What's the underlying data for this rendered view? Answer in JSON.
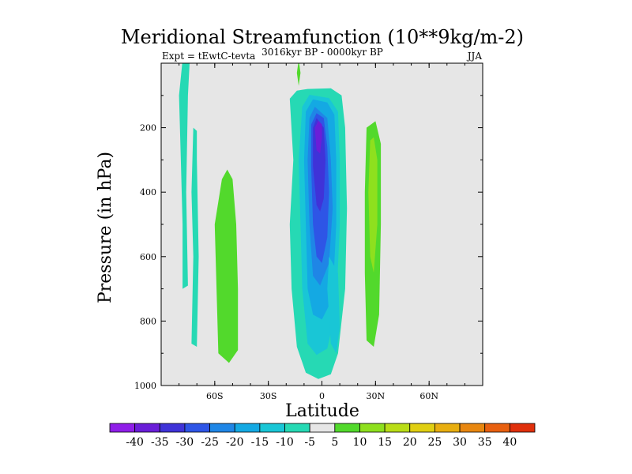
{
  "chart_data": {
    "type": "heatmap",
    "title": "Meridional Streamfunction (10**9kg/m-2)",
    "subtitle": "3016kyr BP - 0000kyr BP",
    "left_label": "Expt = tEwtC-tevta",
    "right_label": "JJA",
    "xlabel": "Latitude",
    "ylabel": "Pressure (in hPa)",
    "xlim": [
      -90,
      90
    ],
    "ylim": [
      1000,
      0
    ],
    "x_ticks": [
      {
        "value": -60,
        "label": "60S"
      },
      {
        "value": -30,
        "label": "30S"
      },
      {
        "value": 0,
        "label": "0"
      },
      {
        "value": 30,
        "label": "30N"
      },
      {
        "value": 60,
        "label": "60N"
      }
    ],
    "y_ticks": [
      {
        "value": 200,
        "label": "200"
      },
      {
        "value": 400,
        "label": "400"
      },
      {
        "value": 600,
        "label": "600"
      },
      {
        "value": 800,
        "label": "800"
      },
      {
        "value": 1000,
        "label": "1000"
      }
    ],
    "colorbar": {
      "levels": [
        -40,
        -35,
        -30,
        -25,
        -20,
        -15,
        -10,
        -5,
        5,
        10,
        15,
        20,
        25,
        30,
        35,
        40
      ],
      "labels": [
        "-40",
        "-35",
        "-30",
        "-25",
        "-20",
        "-15",
        "-10",
        "-5",
        "5",
        "10",
        "15",
        "20",
        "25",
        "30",
        "35",
        "40"
      ],
      "colors": [
        "#8f1ee8",
        "#6a1ed8",
        "#3f33d8",
        "#2e55e6",
        "#1f86e6",
        "#14a9e3",
        "#19c6d6",
        "#26d9b4",
        "#e6e6e6",
        "#52d92c",
        "#8ee01e",
        "#b9dd17",
        "#e0cf12",
        "#e8ae10",
        "#e88710",
        "#e86010",
        "#e0300c"
      ]
    },
    "background_color": "#e6e6e6",
    "regions": [
      {
        "name": "tropical-outer",
        "value": -10,
        "polygon": [
          [
            -8,
            80
          ],
          [
            -14,
            85
          ],
          [
            -18,
            110
          ],
          [
            -16,
            300
          ],
          [
            -18,
            500
          ],
          [
            -17,
            700
          ],
          [
            -14,
            880
          ],
          [
            -9,
            960
          ],
          [
            -2,
            980
          ],
          [
            5,
            965
          ],
          [
            9,
            900
          ],
          [
            13,
            700
          ],
          [
            14,
            450
          ],
          [
            13,
            200
          ],
          [
            11,
            100
          ],
          [
            5,
            78
          ]
        ]
      },
      {
        "name": "tropical-minus15",
        "value": -15,
        "polygon": [
          [
            -7,
            98
          ],
          [
            -11,
            135
          ],
          [
            -13,
            300
          ],
          [
            -12,
            500
          ],
          [
            -11,
            700
          ],
          [
            -8,
            870
          ],
          [
            -3,
            905
          ],
          [
            3,
            885
          ],
          [
            8,
            760
          ],
          [
            10,
            500
          ],
          [
            10,
            300
          ],
          [
            9,
            150
          ],
          [
            4,
            108
          ]
        ]
      },
      {
        "name": "tropical-minus20",
        "value": -20,
        "polygon": [
          [
            -5,
            112
          ],
          [
            -9,
            150
          ],
          [
            -10,
            300
          ],
          [
            -9,
            500
          ],
          [
            -8,
            700
          ],
          [
            -5,
            780
          ],
          [
            0,
            795
          ],
          [
            6,
            730
          ],
          [
            8,
            500
          ],
          [
            8,
            300
          ],
          [
            7,
            160
          ],
          [
            3,
            122
          ]
        ]
      },
      {
        "name": "tropical-minus25",
        "value": -25,
        "polygon": [
          [
            -4,
            135
          ],
          [
            -7,
            170
          ],
          [
            -8,
            300
          ],
          [
            -7,
            500
          ],
          [
            -5,
            660
          ],
          [
            -1,
            690
          ],
          [
            4,
            620
          ],
          [
            6,
            450
          ],
          [
            5,
            300
          ],
          [
            3,
            170
          ]
        ]
      },
      {
        "name": "tropical-minus30",
        "value": -30,
        "polygon": [
          [
            -3,
            155
          ],
          [
            -6,
            190
          ],
          [
            -6,
            320
          ],
          [
            -5,
            500
          ],
          [
            -3,
            600
          ],
          [
            0,
            620
          ],
          [
            3,
            540
          ],
          [
            4,
            400
          ],
          [
            3,
            260
          ],
          [
            1,
            170
          ]
        ]
      },
      {
        "name": "tropical-minus35",
        "value": -35,
        "polygon": [
          [
            -3,
            170
          ],
          [
            -5,
            200
          ],
          [
            -5,
            320
          ],
          [
            -3,
            440
          ],
          [
            -1,
            460
          ],
          [
            1,
            420
          ],
          [
            2,
            300
          ],
          [
            1,
            200
          ]
        ]
      },
      {
        "name": "tropical-minus40",
        "value": -40,
        "polygon": [
          [
            -2,
            178
          ],
          [
            -4,
            200
          ],
          [
            -3,
            270
          ],
          [
            -1,
            280
          ],
          [
            0,
            230
          ],
          [
            0,
            190
          ]
        ]
      },
      {
        "name": "nh-minus15-lobe",
        "value": -15,
        "polygon": [
          [
            4,
            600
          ],
          [
            3,
            700
          ],
          [
            5,
            870
          ],
          [
            8,
            900
          ],
          [
            10,
            820
          ],
          [
            9,
            650
          ]
        ]
      },
      {
        "name": "west-strip-minus10",
        "value": -10,
        "polygon": [
          [
            -78,
            -10
          ],
          [
            -80,
            100
          ],
          [
            -79,
            300
          ],
          [
            -78,
            500
          ],
          [
            -78,
            700
          ],
          [
            -75,
            690
          ],
          [
            -76,
            400
          ],
          [
            -75,
            100
          ],
          [
            -74,
            -10
          ]
        ]
      },
      {
        "name": "west-strip-narrow",
        "value": -10,
        "polygon": [
          [
            -72,
            200
          ],
          [
            -73,
            400
          ],
          [
            -72,
            600
          ],
          [
            -73,
            870
          ],
          [
            -70,
            880
          ],
          [
            -69,
            600
          ],
          [
            -70,
            300
          ],
          [
            -70,
            210
          ]
        ]
      },
      {
        "name": "sh-subtrop-positive",
        "value": 5,
        "polygon": [
          [
            -56,
            360
          ],
          [
            -60,
            500
          ],
          [
            -59,
            700
          ],
          [
            -58,
            900
          ],
          [
            -52,
            930
          ],
          [
            -47,
            890
          ],
          [
            -47,
            700
          ],
          [
            -48,
            500
          ],
          [
            -50,
            360
          ],
          [
            -53,
            330
          ]
        ]
      },
      {
        "name": "nh-subtrop-positive",
        "value": 5,
        "polygon": [
          [
            25,
            200
          ],
          [
            24,
            400
          ],
          [
            24,
            650
          ],
          [
            25,
            860
          ],
          [
            29,
            880
          ],
          [
            32,
            780
          ],
          [
            33,
            500
          ],
          [
            33,
            250
          ],
          [
            30,
            180
          ]
        ]
      },
      {
        "name": "nh-subtrop-plus10",
        "value": 10,
        "polygon": [
          [
            27,
            240
          ],
          [
            26,
            400
          ],
          [
            27,
            600
          ],
          [
            29,
            650
          ],
          [
            31,
            500
          ],
          [
            31,
            300
          ],
          [
            29,
            230
          ]
        ]
      },
      {
        "name": "small-green-dot",
        "value": 5,
        "polygon": [
          [
            -13,
            -10
          ],
          [
            -14,
            30
          ],
          [
            -13,
            70
          ],
          [
            -12,
            30
          ]
        ]
      }
    ]
  }
}
